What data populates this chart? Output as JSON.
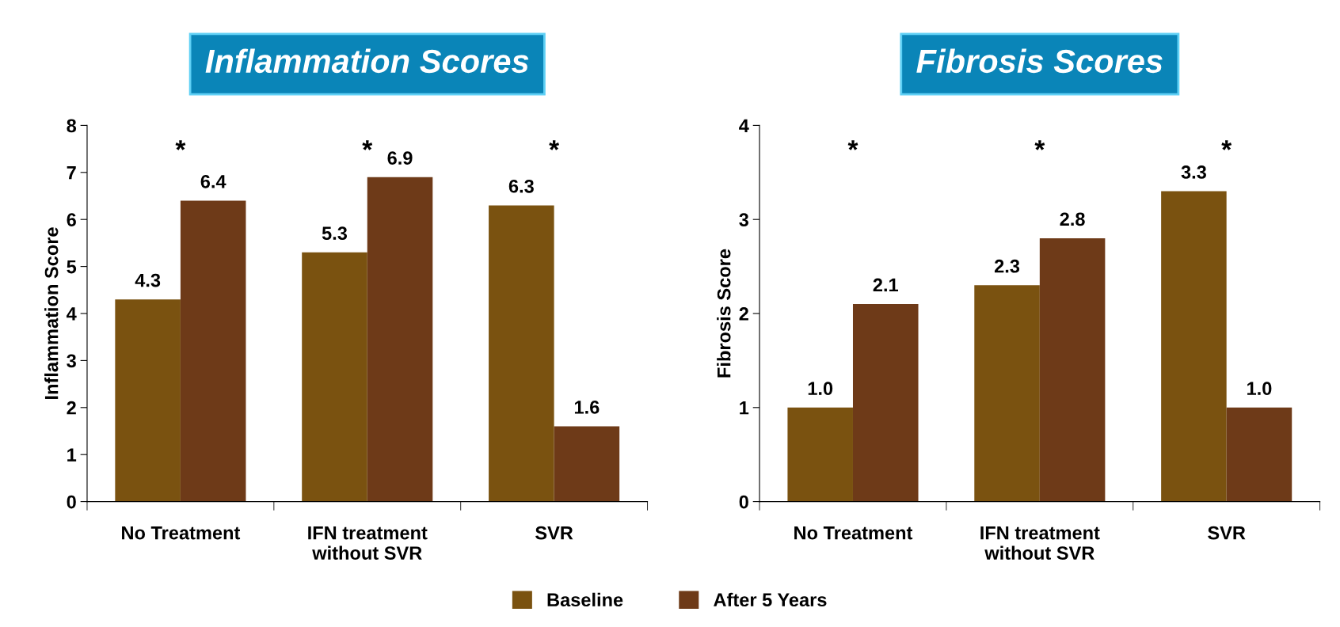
{
  "chart_data": [
    {
      "type": "bar",
      "title": "Inflammation Scores",
      "ylabel": "Inflammation Score",
      "categories": [
        "No Treatment",
        "IFN treatment\nwithout SVR",
        "SVR"
      ],
      "series": [
        {
          "name": "Baseline",
          "color": "#7a5210",
          "values": [
            4.3,
            5.3,
            6.3
          ],
          "value_labels": [
            "4.3",
            "5.3",
            "6.3"
          ]
        },
        {
          "name": "After 5 Years",
          "color": "#6e3a18",
          "values": [
            6.4,
            6.9,
            1.6
          ],
          "value_labels": [
            "6.4",
            "6.9",
            "1.6"
          ]
        }
      ],
      "ylim": [
        0,
        8
      ],
      "yticks": [
        0,
        1,
        2,
        3,
        4,
        5,
        6,
        7,
        8
      ],
      "legend": "bottom",
      "grid": false,
      "annotations": [
        "*",
        "*",
        "*"
      ]
    },
    {
      "type": "bar",
      "title": "Fibrosis Scores",
      "ylabel": "Fibrosis Score",
      "categories": [
        "No Treatment",
        "IFN treatment\nwithout SVR",
        "SVR"
      ],
      "series": [
        {
          "name": "Baseline",
          "color": "#7a5210",
          "values": [
            1.0,
            2.3,
            3.3
          ],
          "value_labels": [
            "1.0",
            "2.3",
            "3.3"
          ]
        },
        {
          "name": "After 5 Years",
          "color": "#6e3a18",
          "values": [
            2.1,
            2.8,
            1.0
          ],
          "value_labels": [
            "2.1",
            "2.8",
            "1.0"
          ]
        }
      ],
      "ylim": [
        0,
        4
      ],
      "yticks": [
        0,
        1,
        2,
        3,
        4
      ],
      "legend": "bottom",
      "grid": false,
      "annotations": [
        "*",
        "*",
        "*"
      ]
    }
  ]
}
